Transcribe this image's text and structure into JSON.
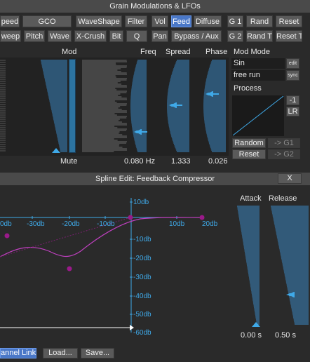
{
  "top_panel": {
    "title": "Grain Modulations & LFOs",
    "row1": [
      "peed",
      "GCO",
      "WaveShape",
      "Filter",
      "Vol",
      "Feed",
      "Diffuse",
      "G 1",
      "Rand",
      "Reset"
    ],
    "row2": [
      "weep",
      "Pitch",
      "Wave",
      "X-Crush",
      "Bit",
      "Q",
      "Pan",
      "Bypass / Aux",
      "G 2",
      "Rand T",
      "Reset T"
    ],
    "active_tab": "Feed",
    "columns": {
      "mod": "Mod",
      "freq": "Freq",
      "spread": "Spread",
      "phase": "Phase"
    },
    "mute": "Mute",
    "freq_value": "0.080 Hz",
    "spread_value": "1.333",
    "phase_value": "0.026",
    "mod_mode": {
      "title": "Mod Mode",
      "waveform": "Sin",
      "edit": "edit",
      "run_mode": "free run",
      "sync": "sync"
    },
    "process": {
      "title": "Process",
      "minus_one": "-1",
      "lr": "LR",
      "random": "Random",
      "to_g1": "-> G1",
      "reset": "Reset",
      "to_g2": "-> G2"
    }
  },
  "spline_panel": {
    "title": "Spline Edit: Feedback Compressor",
    "close": "X",
    "x_ticks": [
      "0db",
      "-30db",
      "-20db",
      "-10db",
      "10db",
      "20db"
    ],
    "y_ticks": [
      "10db",
      "-10db",
      "-20db",
      "-30db",
      "-40db",
      "-50db",
      "-60db"
    ],
    "attack_label": "Attack",
    "release_label": "Release",
    "attack_value": "0.00 s",
    "release_value": "0.50 s",
    "channel_link": "annel Link",
    "load": "Load...",
    "save": "Save..."
  },
  "colors": {
    "accent_blue": "#3fa9e8",
    "curve_magenta": "#c040c0",
    "point_purple": "#9a1a8a",
    "active_tab": "#4a78c8"
  }
}
